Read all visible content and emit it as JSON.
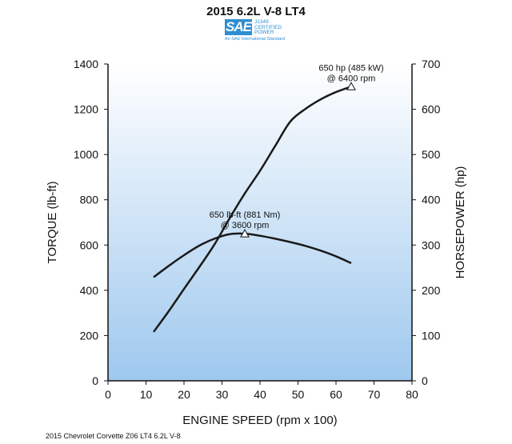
{
  "title": "2015 6.2L V-8 LT4",
  "logo": {
    "mark": "SAE",
    "line1": "J1349",
    "line2": "CERTIFIED",
    "line3": "POWER",
    "standard": "An SAE International Standard"
  },
  "footer": "2015 Chevrolet Corvette Z06 LT4 6.2L V-8",
  "colors": {
    "background_top": "#ffffff",
    "background_bottom": "#9ec8ee",
    "curve": "#1a1a1a"
  },
  "chart_data": {
    "type": "line",
    "title": "2015 6.2L V-8 LT4",
    "xlabel": "ENGINE SPEED (rpm x 100)",
    "ylabel": "TORQUE (lb-ft)",
    "ylabel_right": "HORSEPOWER (hp)",
    "xlim": [
      0,
      80
    ],
    "ylim": [
      0,
      1400
    ],
    "ylim_right": [
      0,
      700
    ],
    "xticks": [
      "0",
      "10",
      "20",
      "30",
      "40",
      "50",
      "60",
      "70",
      "80"
    ],
    "yticks": [
      "0",
      "200",
      "400",
      "600",
      "800",
      "1000",
      "1200",
      "1400"
    ],
    "yticks_right": [
      "0",
      "100",
      "200",
      "300",
      "400",
      "500",
      "600",
      "700"
    ],
    "grid": false,
    "series": [
      {
        "axis": "left",
        "x": [
          12,
          16,
          20,
          24,
          28,
          32,
          36,
          40,
          44,
          48,
          52,
          56,
          60,
          64
        ],
        "values": [
          458,
          508,
          555,
          597,
          628,
          648,
          650,
          641,
          628,
          613,
          596,
          575,
          550,
          520
        ]
      },
      {
        "axis": "right",
        "x": [
          12,
          16,
          20,
          24,
          28,
          32,
          36,
          40,
          44,
          48,
          52,
          56,
          60,
          64
        ],
        "values": [
          108,
          154,
          203,
          251,
          301,
          359,
          414,
          464,
          519,
          573,
          601,
          622,
          638,
          650
        ]
      }
    ],
    "annotations": [
      {
        "axis": "left",
        "x": 36,
        "y": 650,
        "line1": "650 lb-ft (881 Nm)",
        "line2": "@ 3600 rpm"
      },
      {
        "axis": "right",
        "x": 64,
        "y": 650,
        "line1": "650 hp (485 kW)",
        "line2": "@ 6400 rpm"
      }
    ]
  }
}
